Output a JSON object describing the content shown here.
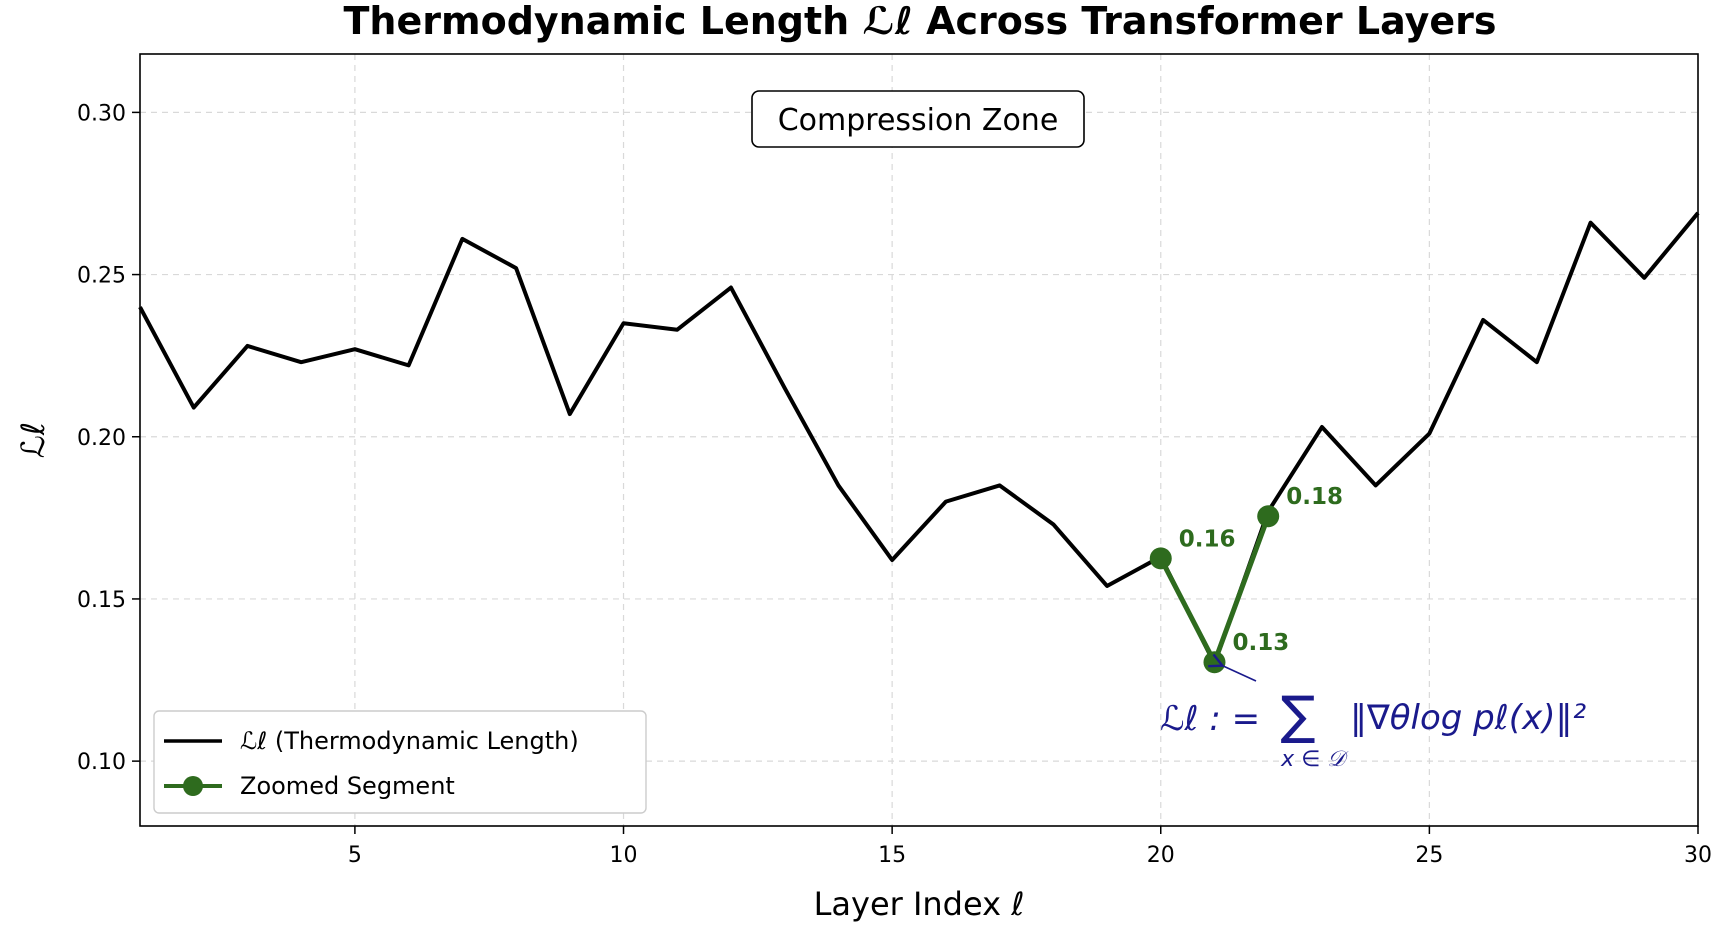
{
  "chart_data": {
    "type": "line",
    "title": "Thermodynamic Length ℒℓ Across Transformer Layers",
    "xlabel": "Layer Index ℓ",
    "ylabel": "ℒℓ",
    "xlim": [
      1,
      30
    ],
    "ylim": [
      0.08,
      0.318
    ],
    "xticks": [
      5,
      10,
      15,
      20,
      25,
      30
    ],
    "yticks": [
      0.1,
      0.15,
      0.2,
      0.25,
      0.3
    ],
    "xtick_labels": [
      "5",
      "10",
      "15",
      "20",
      "25",
      "30"
    ],
    "ytick_labels": [
      "0.10",
      "0.15",
      "0.20",
      "0.25",
      "0.30"
    ],
    "grid": true,
    "legend_placement": "lower-left",
    "series": [
      {
        "name": "ℒℓ (Thermodynamic Length)",
        "color": "#000000",
        "x": [
          1,
          2,
          3,
          4,
          5,
          6,
          7,
          8,
          9,
          10,
          11,
          12,
          13,
          14,
          15,
          16,
          17,
          18,
          19,
          20,
          21,
          22,
          23,
          24,
          25,
          26,
          27,
          28,
          29,
          30
        ],
        "values": [
          0.24,
          0.209,
          0.228,
          0.223,
          0.227,
          0.222,
          0.261,
          0.252,
          0.207,
          0.235,
          0.233,
          0.246,
          0.215,
          0.185,
          0.162,
          0.18,
          0.185,
          0.173,
          0.154,
          0.163,
          0.13,
          0.177,
          0.203,
          0.185,
          0.201,
          0.236,
          0.223,
          0.266,
          0.249,
          0.269
        ]
      },
      {
        "name": "Zoomed Segment",
        "color": "#2e6b1e",
        "marker": "circle",
        "x": [
          20,
          21,
          22
        ],
        "values": [
          0.1625,
          0.1305,
          0.1755
        ]
      }
    ],
    "point_labels": [
      {
        "x": 20,
        "y": 0.1625,
        "text": "0.16"
      },
      {
        "x": 21,
        "y": 0.1305,
        "text": "0.13"
      },
      {
        "x": 22,
        "y": 0.1755,
        "text": "0.18"
      }
    ],
    "annotations": {
      "zone_label": "Compression Zone",
      "formula_lhs": "ℒℓ : =",
      "formula_sum": "∑",
      "formula_rhs": "‖∇θlog pℓ(x)‖²",
      "formula_sub": "x ∈ 𝒟",
      "formula_color": "#1a1a8c"
    }
  }
}
